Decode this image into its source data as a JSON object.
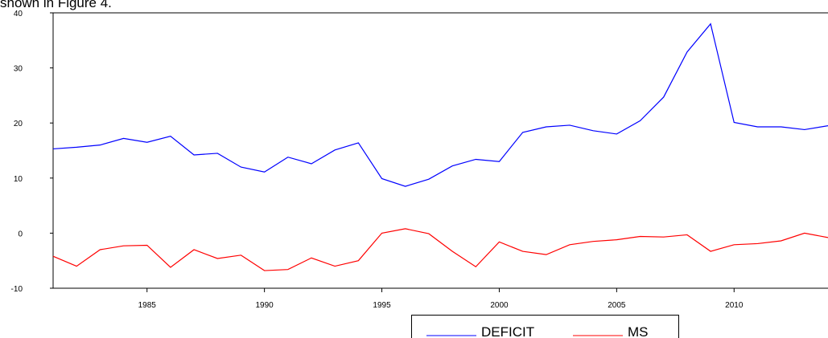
{
  "caption": "shown in Figure 4.",
  "chart_data": {
    "type": "line",
    "x": [
      1981,
      1982,
      1983,
      1984,
      1985,
      1986,
      1987,
      1988,
      1989,
      1990,
      1991,
      1992,
      1993,
      1994,
      1995,
      1996,
      1997,
      1998,
      1999,
      2000,
      2001,
      2002,
      2003,
      2004,
      2005,
      2006,
      2007,
      2008,
      2009,
      2010,
      2011,
      2012,
      2013,
      2014
    ],
    "series": [
      {
        "name": "DEFICIT",
        "color": "#0000ff",
        "values": [
          15.3,
          15.6,
          16.0,
          17.2,
          16.5,
          17.6,
          14.2,
          14.5,
          12.0,
          11.1,
          13.8,
          12.6,
          15.1,
          16.4,
          9.9,
          8.5,
          9.8,
          12.2,
          13.4,
          13.0,
          18.3,
          19.3,
          19.6,
          18.6,
          18.0,
          20.4,
          24.7,
          32.9,
          38.0,
          20.1,
          19.3,
          19.3,
          18.8,
          19.5
        ]
      },
      {
        "name": "MS",
        "color": "#ff0000",
        "values": [
          -4.2,
          -6.0,
          -3.0,
          -2.3,
          -2.2,
          -6.2,
          -3.0,
          -4.6,
          -4.0,
          -6.8,
          -6.6,
          -4.5,
          -6.0,
          -5.0,
          0.0,
          0.8,
          -0.1,
          -3.3,
          -6.1,
          -1.6,
          -3.3,
          -3.9,
          -2.1,
          -1.5,
          -1.2,
          -0.6,
          -0.7,
          -0.3,
          -3.3,
          -2.1,
          -1.9,
          -1.4,
          0.0,
          -0.8
        ]
      }
    ],
    "xlim": [
      1981,
      2014
    ],
    "xticks": [
      1985,
      1990,
      1995,
      2000,
      2005,
      2010
    ],
    "ylim": [
      -10,
      40
    ],
    "yticks": [
      -10,
      0,
      10,
      20,
      30,
      40
    ],
    "legend": "bottom"
  }
}
